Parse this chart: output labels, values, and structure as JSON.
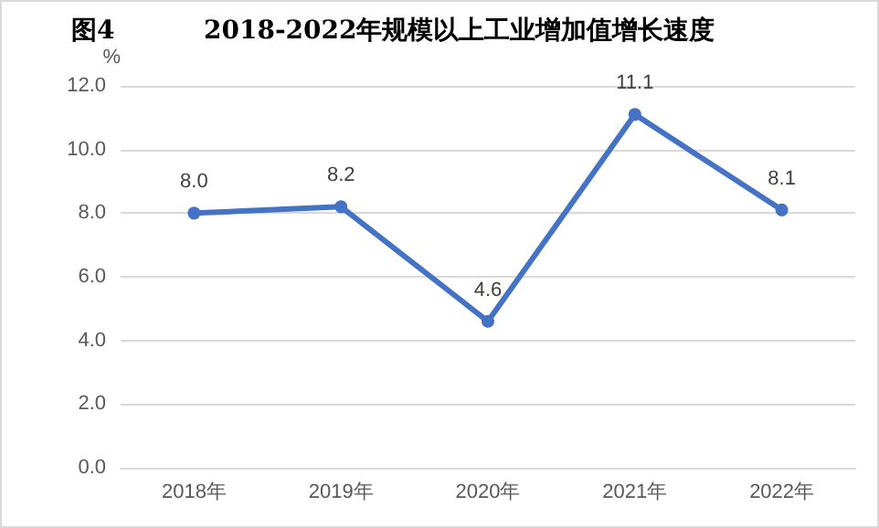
{
  "chart_data": {
    "type": "line",
    "title": "图4          2018-2022年规模以上工业增加值增长速度",
    "ylabel": "%",
    "categories": [
      "2018年",
      "2019年",
      "2020年",
      "2021年",
      "2022年"
    ],
    "series": [
      {
        "color": "#4472c4",
        "values": [
          8.0,
          8.2,
          4.6,
          11.1,
          8.1
        ],
        "value_labels": [
          "8.0",
          "8.2",
          "4.6",
          "11.1",
          "8.1"
        ]
      }
    ],
    "ylim": [
      0,
      12
    ],
    "yticks": [
      {
        "value": 0,
        "label": "0.0"
      },
      {
        "value": 2,
        "label": "2.0"
      },
      {
        "value": 4,
        "label": "4.0"
      },
      {
        "value": 6,
        "label": "6.0"
      },
      {
        "value": 8,
        "label": "8.0"
      },
      {
        "value": 10,
        "label": "10.0"
      },
      {
        "value": 12,
        "label": "12.0"
      }
    ],
    "grid": "y",
    "marker": "circle",
    "line_style": "solid"
  }
}
